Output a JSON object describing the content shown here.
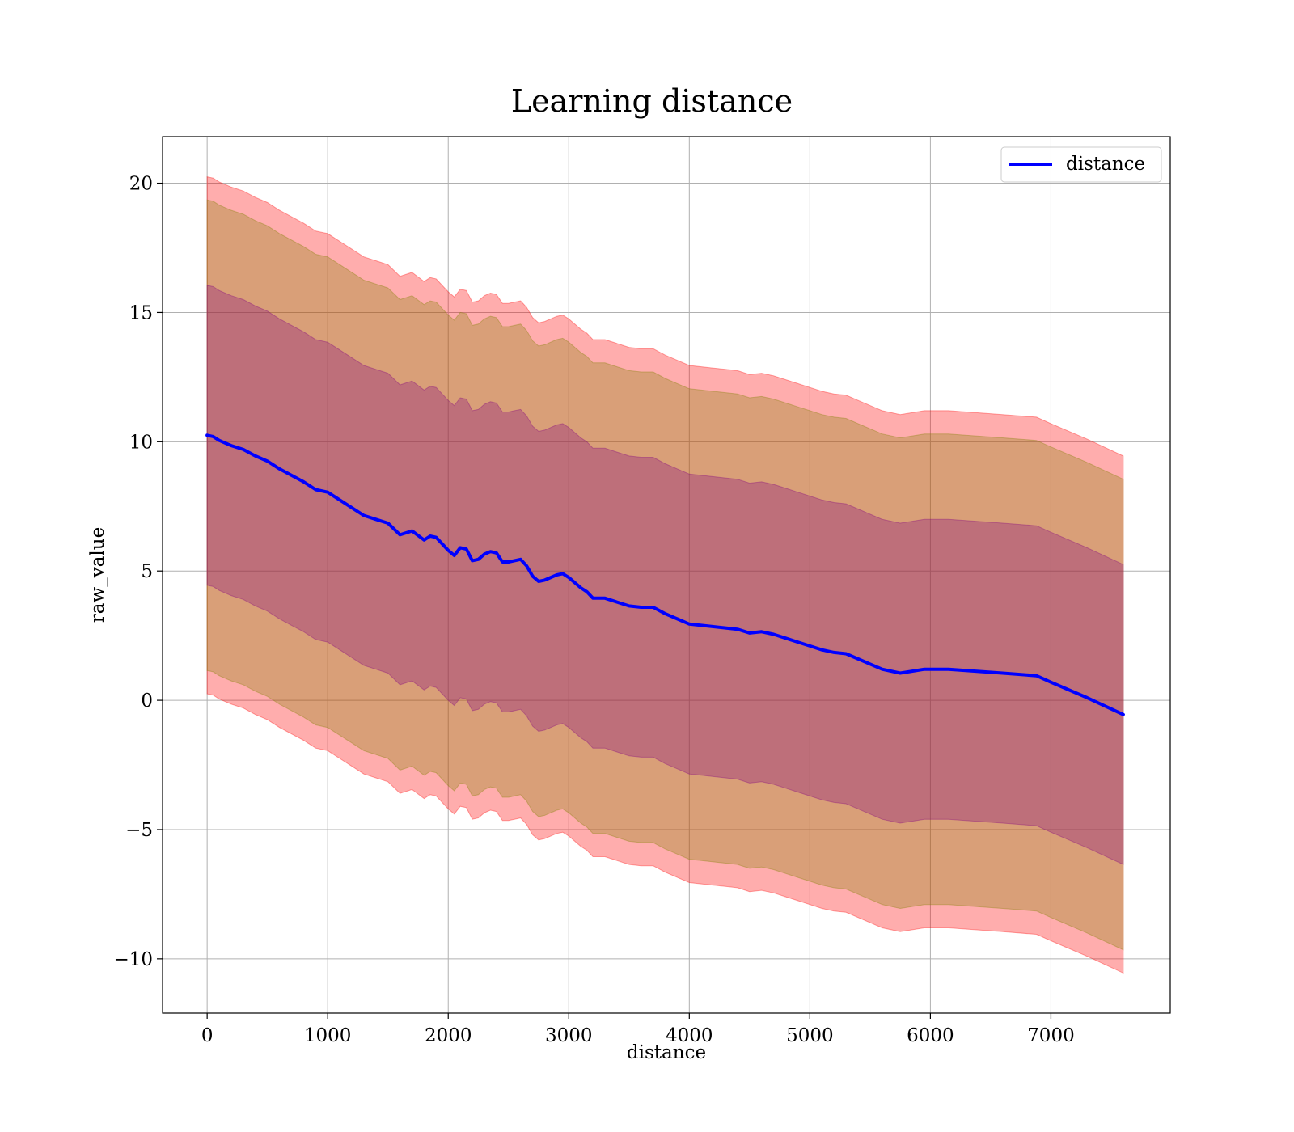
{
  "chart_data": {
    "type": "line",
    "title": "Learning distance",
    "xlabel": "distance",
    "ylabel": "raw_value",
    "xlim": [
      -370,
      7990
    ],
    "ylim": [
      -12.1,
      21.8
    ],
    "xticks": [
      0,
      1000,
      2000,
      3000,
      4000,
      5000,
      6000,
      7000
    ],
    "xtick_labels": [
      "0",
      "1000",
      "2000",
      "3000",
      "4000",
      "5000",
      "6000",
      "7000"
    ],
    "yticks": [
      -10,
      -5,
      0,
      5,
      10,
      15,
      20
    ],
    "ytick_labels": [
      "−10",
      "−5",
      "0",
      "5",
      "10",
      "15",
      "20"
    ],
    "grid": true,
    "legend_position": "top-right",
    "series": [
      {
        "name": "distance",
        "color": "#0000ff",
        "x": [
          0,
          50,
          100,
          150,
          200,
          300,
          400,
          500,
          600,
          700,
          800,
          900,
          1000,
          1100,
          1200,
          1300,
          1400,
          1500,
          1600,
          1700,
          1800,
          1850,
          1900,
          2000,
          2050,
          2100,
          2150,
          2200,
          2250,
          2300,
          2350,
          2400,
          2450,
          2500,
          2550,
          2600,
          2650,
          2700,
          2750,
          2800,
          2900,
          2950,
          3000,
          3100,
          3150,
          3200,
          3300,
          3400,
          3500,
          3600,
          3700,
          3800,
          3900,
          4000,
          4100,
          4200,
          4300,
          4400,
          4500,
          4600,
          4700,
          4800,
          4900,
          5000,
          5100,
          5200,
          5300,
          5400,
          5500,
          5600,
          5750,
          5950,
          6150,
          6600,
          6880,
          7000,
          7300,
          7600
        ],
        "y": [
          10.25,
          10.2,
          10.05,
          9.95,
          9.85,
          9.7,
          9.45,
          9.25,
          8.95,
          8.7,
          8.45,
          8.15,
          8.05,
          7.75,
          7.45,
          7.15,
          7.0,
          6.85,
          6.4,
          6.55,
          6.2,
          6.35,
          6.3,
          5.8,
          5.6,
          5.9,
          5.85,
          5.4,
          5.45,
          5.65,
          5.75,
          5.7,
          5.35,
          5.35,
          5.4,
          5.45,
          5.2,
          4.8,
          4.6,
          4.65,
          4.85,
          4.9,
          4.75,
          4.35,
          4.2,
          3.95,
          3.95,
          3.8,
          3.65,
          3.6,
          3.6,
          3.35,
          3.15,
          2.95,
          2.9,
          2.85,
          2.8,
          2.75,
          2.6,
          2.65,
          2.55,
          2.4,
          2.25,
          2.1,
          1.95,
          1.85,
          1.8,
          1.6,
          1.4,
          1.2,
          1.05,
          1.2,
          1.2,
          1.05,
          0.95,
          0.7,
          0.1,
          -0.55
        ]
      }
    ],
    "bands": [
      {
        "half_width": 10.0,
        "color": "#ff0000",
        "opacity": 0.32
      },
      {
        "half_width": 9.1,
        "color": "#808000",
        "opacity": 0.3
      },
      {
        "half_width": 5.8,
        "color": "#800080",
        "opacity": 0.3
      }
    ]
  }
}
